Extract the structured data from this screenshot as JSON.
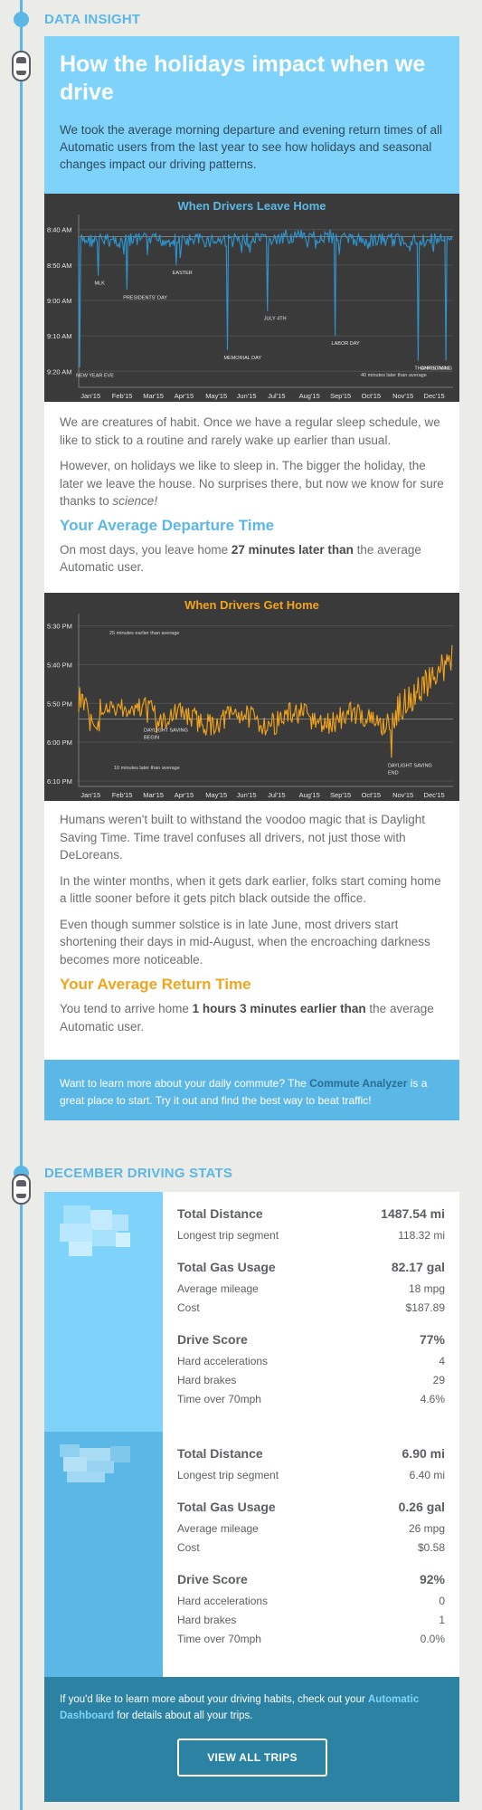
{
  "sections": {
    "insight_label": "DATA INSIGHT",
    "stats_label": "DECEMBER DRIVING STATS"
  },
  "hero": {
    "title": "How the holidays impact when we drive",
    "intro": "We took the average morning departure and evening return times of all Automatic users from the last year to see how holidays and seasonal changes impact our driving patterns."
  },
  "chart_data": [
    {
      "type": "line",
      "title": "When Drivers Leave Home",
      "x_ticks": [
        "Jan'15",
        "Feb'15",
        "Mar'15",
        "Apr'15",
        "May'15",
        "Jun'15",
        "Jul'15",
        "Aug'15",
        "Sep'15",
        "Oct'15",
        "Nov'15",
        "Dec'15"
      ],
      "y_ticks": [
        "8:40 AM",
        "8:50 AM",
        "9:00 AM",
        "9:10 AM",
        "9:20 AM"
      ],
      "ylim_minutes_after_8am": [
        37,
        83
      ],
      "y_inverted": true,
      "reference_line_minutes": 42,
      "series_color": "#2f95d0",
      "annotations": [
        {
          "label": "NEW YEAR EVE",
          "day": 1,
          "value": 79
        },
        {
          "label": "MLK",
          "day": 19,
          "value": 53
        },
        {
          "label": "PRESIDENTS' DAY",
          "day": 47,
          "value": 57
        },
        {
          "label": "EASTER",
          "day": 95,
          "value": 50
        },
        {
          "label": "MEMORIAL DAY",
          "day": 145,
          "value": 74
        },
        {
          "label": "JULY 4TH",
          "day": 184,
          "value": 63
        },
        {
          "label": "LABOR DAY",
          "day": 250,
          "value": 70
        },
        {
          "label": "THANKSGIVING",
          "day": 331,
          "value": 77
        },
        {
          "label": "CHRISTMAS",
          "day": 358,
          "value": 77
        }
      ],
      "note": "40 minutes later than average"
    },
    {
      "type": "line",
      "title": "When Drivers Get Home",
      "x_ticks": [
        "Jan'15",
        "Feb'15",
        "Mar'15",
        "Apr'15",
        "May'15",
        "Jun'15",
        "Jul'15",
        "Aug'15",
        "Sep'15",
        "Oct'15",
        "Nov'15",
        "Dec'15"
      ],
      "y_ticks": [
        "5:30 PM",
        "5:40 PM",
        "5:50 PM",
        "6:00 PM",
        "6:10 PM"
      ],
      "ylim_minutes_after_5pm": [
        28,
        70
      ],
      "y_inverted": true,
      "reference_line_minutes": 54,
      "series_color": "#f2a41d",
      "annotations": [
        {
          "label": "DAYLIGHT SAVING BEGIN",
          "day": 67,
          "value": 55
        },
        {
          "label": "DAYLIGHT SAVING END",
          "day": 305,
          "value": 64
        }
      ],
      "notes": [
        "25 minutes earlier than average",
        "10 minutes later than average"
      ]
    }
  ],
  "body": {
    "p1": "We are creatures of habit. Once we have a regular sleep schedule, we like to stick to a routine and rarely wake up earlier than usual.",
    "p2_a": "However, on holidays we like to sleep in. The bigger the holiday, the later we leave the house. No surprises there, but now we know for sure thanks to ",
    "p2_em": "science!",
    "h_departure": "Your Average Departure Time",
    "dep_a": "On most days, you leave home ",
    "dep_b": "27 minutes later than",
    "dep_c": " the average Automatic user.",
    "p3": "Humans weren't built to withstand the voodoo magic that is Daylight Saving Time. Time travel confuses all drivers, not just those with DeLoreans.",
    "p4": "In the winter months, when it gets dark earlier, folks start coming home a little sooner before it gets pitch black outside the office.",
    "p5": "Even though summer solstice is in late June, most drivers start shortening their days in mid-August, when the encroaching darkness becomes more noticeable.",
    "h_return": "Your Average Return Time",
    "ret_a": "You tend to arrive home ",
    "ret_b": "1 hours 3 minutes earlier than",
    "ret_c": " the average Automatic user."
  },
  "cta": {
    "text_a": "Want to learn more about your daily commute? The ",
    "link": "Commute Analyzer",
    "text_b": " is a great place to start. Try it out and find the best way to beat traffic!"
  },
  "vehicles": [
    {
      "total_distance_label": "Total Distance",
      "total_distance": "1487.54 mi",
      "longest_label": "Longest trip segment",
      "longest": "118.32 mi",
      "gas_label": "Total Gas Usage",
      "gas": "82.17 gal",
      "mileage_label": "Average mileage",
      "mileage": "18 mpg",
      "cost_label": "Cost",
      "cost": "$187.89",
      "score_label": "Drive Score",
      "score": "77%",
      "accel_label": "Hard accelerations",
      "accel": "4",
      "brakes_label": "Hard brakes",
      "brakes": "29",
      "speed_label": "Time over 70mph",
      "speed": "4.6%",
      "panel_color": "#7fd3fb"
    },
    {
      "total_distance_label": "Total Distance",
      "total_distance": "6.90 mi",
      "longest_label": "Longest trip segment",
      "longest": "6.40 mi",
      "gas_label": "Total Gas Usage",
      "gas": "0.26 gal",
      "mileage_label": "Average mileage",
      "mileage": "26 mpg",
      "cost_label": "Cost",
      "cost": "$0.58",
      "score_label": "Drive Score",
      "score": "92%",
      "accel_label": "Hard accelerations",
      "accel": "0",
      "brakes_label": "Hard brakes",
      "brakes": "1",
      "speed_label": "Time over 70mph",
      "speed": "0.0%",
      "panel_color": "#5bb8e6"
    }
  ],
  "footer": {
    "text_a": "If you'd like to learn more about your driving habits, check out your ",
    "link": "Automatic Dashboard",
    "text_b": " for details about all your trips.",
    "button": "VIEW ALL TRIPS"
  }
}
